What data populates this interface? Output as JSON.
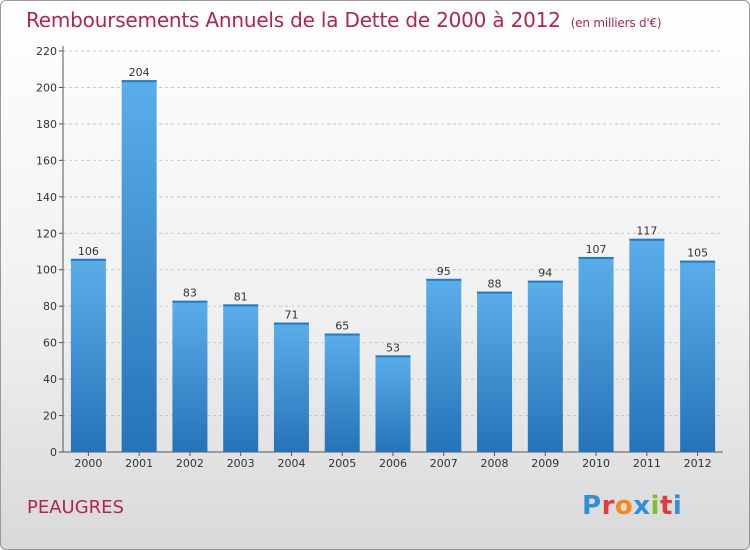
{
  "title": "Remboursements Annuels de la Dette de 2000 à 2012",
  "subtitle": "(en milliers d'€)",
  "town": "PEAUGRES",
  "logo": {
    "letters": [
      "P",
      "r",
      "o",
      "x",
      "i",
      "t",
      "i"
    ],
    "colors": [
      "#2f8fd8",
      "#e23b3b",
      "#f08a1c",
      "#2f8fd8",
      "#7fbf2a",
      "#e23b3b",
      "#2f8fd8"
    ]
  },
  "colors": {
    "bar": "#4a9fe0",
    "bar_dark": "#2a78bd",
    "title": "#b0254f"
  },
  "chart_data": {
    "type": "bar",
    "categories": [
      "2000",
      "2001",
      "2002",
      "2003",
      "2004",
      "2005",
      "2006",
      "2007",
      "2008",
      "2009",
      "2010",
      "2011",
      "2012"
    ],
    "values": [
      106,
      204,
      83,
      81,
      71,
      65,
      53,
      95,
      88,
      94,
      107,
      117,
      105
    ],
    "data_labels": [
      "106",
      "204",
      "83",
      "81",
      "71",
      "65",
      "53",
      "95",
      "88",
      "94",
      "107",
      "117",
      "105"
    ],
    "yticks": [
      "0",
      "20",
      "40",
      "60",
      "80",
      "100",
      "120",
      "140",
      "160",
      "180",
      "200",
      "220"
    ],
    "ylim": [
      0,
      220
    ],
    "grid": true
  }
}
